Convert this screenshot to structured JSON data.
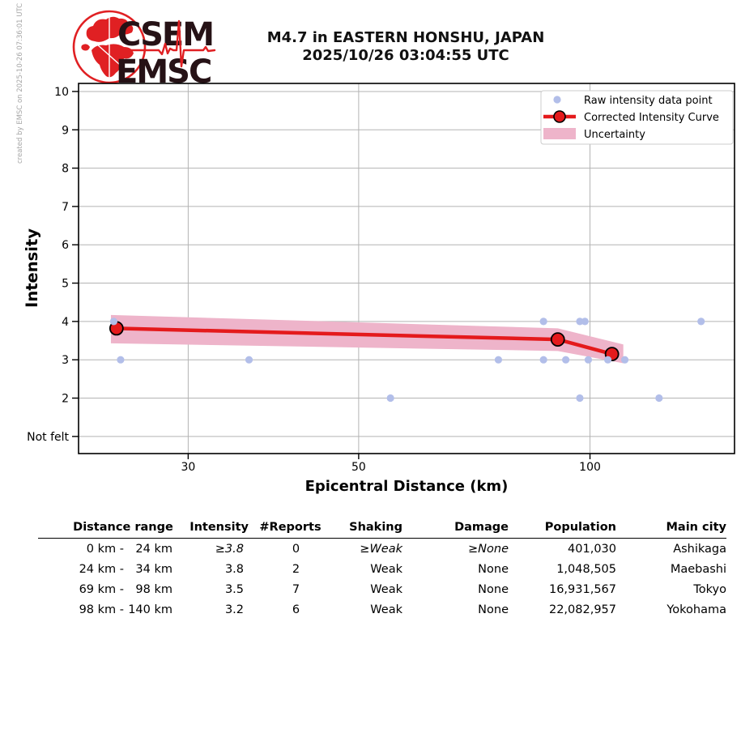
{
  "created_by": "created by EMSC on 2025-10-26 07:36:01 UTC",
  "logo": {
    "top_text": "CSEM",
    "bottom_text": "EMSC",
    "red": "#e02023",
    "dark": "#261216"
  },
  "header": {
    "title_line1": "M4.7 in EASTERN HONSHU, JAPAN",
    "title_line2": "2025/10/26 03:04:55 UTC"
  },
  "chart_data": {
    "type": "scatter",
    "xlabel": "Epicentral Distance (km)",
    "ylabel": "Intensity",
    "x_scale": "log",
    "xlim": [
      21.6,
      154.2
    ],
    "ylim": [
      0.553,
      10.21
    ],
    "x_ticks": [
      30,
      50,
      100
    ],
    "y_ticks": [
      {
        "value": 10,
        "label": "10"
      },
      {
        "value": 9,
        "label": "9"
      },
      {
        "value": 8,
        "label": "8"
      },
      {
        "value": 7,
        "label": "7"
      },
      {
        "value": 6,
        "label": "6"
      },
      {
        "value": 5,
        "label": "5"
      },
      {
        "value": 4,
        "label": "4"
      },
      {
        "value": 3,
        "label": "3"
      },
      {
        "value": 2,
        "label": "2"
      },
      {
        "value": 1,
        "label": "Not felt"
      }
    ],
    "grid": true,
    "legend_position": "upper right",
    "series": [
      {
        "name": "Raw intensity data point",
        "kind": "scatter",
        "color": "#b2bee9",
        "points": [
          [
            24,
            4
          ],
          [
            24.5,
            3
          ],
          [
            36,
            3
          ],
          [
            55,
            2
          ],
          [
            76,
            3
          ],
          [
            87,
            4
          ],
          [
            87,
            3
          ],
          [
            93,
            3
          ],
          [
            97,
            4
          ],
          [
            98.5,
            4
          ],
          [
            97,
            2
          ],
          [
            99.5,
            3
          ],
          [
            105.5,
            3
          ],
          [
            111,
            3
          ],
          [
            123,
            2
          ],
          [
            139.5,
            4
          ]
        ]
      },
      {
        "name": "Corrected Intensity Curve",
        "kind": "line",
        "color": "#e41a1c",
        "marker_edge": "#000000",
        "points": [
          [
            24.2,
            3.82
          ],
          [
            90.8,
            3.53
          ],
          [
            106.8,
            3.15
          ]
        ]
      },
      {
        "name": "Uncertainty",
        "kind": "band",
        "color": "#eeb4ca",
        "upper": [
          [
            23.8,
            4.17
          ],
          [
            90.8,
            3.82
          ],
          [
            110.5,
            3.4
          ]
        ],
        "lower": [
          [
            23.8,
            3.43
          ],
          [
            90.8,
            3.23
          ],
          [
            110.5,
            2.91
          ]
        ]
      }
    ]
  },
  "table": {
    "headers": [
      "Distance range",
      "Intensity",
      "#Reports",
      "Shaking",
      "Damage",
      "Population",
      "Main city"
    ],
    "rows": [
      {
        "range_from": "0 km -",
        "range_to": "24 km",
        "intensity": "≥3.8",
        "reports": "0",
        "shaking": "≥Weak",
        "damage": "≥None",
        "population": "401,030",
        "city": "Ashikaga",
        "estimated": true
      },
      {
        "range_from": "24 km -",
        "range_to": "34 km",
        "intensity": "3.8",
        "reports": "2",
        "shaking": "Weak",
        "damage": "None",
        "population": "1,048,505",
        "city": "Maebashi",
        "estimated": false
      },
      {
        "range_from": "69 km -",
        "range_to": "98 km",
        "intensity": "3.5",
        "reports": "7",
        "shaking": "Weak",
        "damage": "None",
        "population": "16,931,567",
        "city": "Tokyo",
        "estimated": false
      },
      {
        "range_from": "98 km -",
        "range_to": "140 km",
        "intensity": "3.2",
        "reports": "6",
        "shaking": "Weak",
        "damage": "None",
        "population": "22,082,957",
        "city": "Yokohama",
        "estimated": false
      }
    ]
  },
  "colors": {
    "grid": "#b3b3b3",
    "frame": "#000000",
    "raw_point": "#b2bee9",
    "curve_red": "#e41a1c",
    "band_pink": "#eeb4ca",
    "legend_border": "#cccccc"
  }
}
